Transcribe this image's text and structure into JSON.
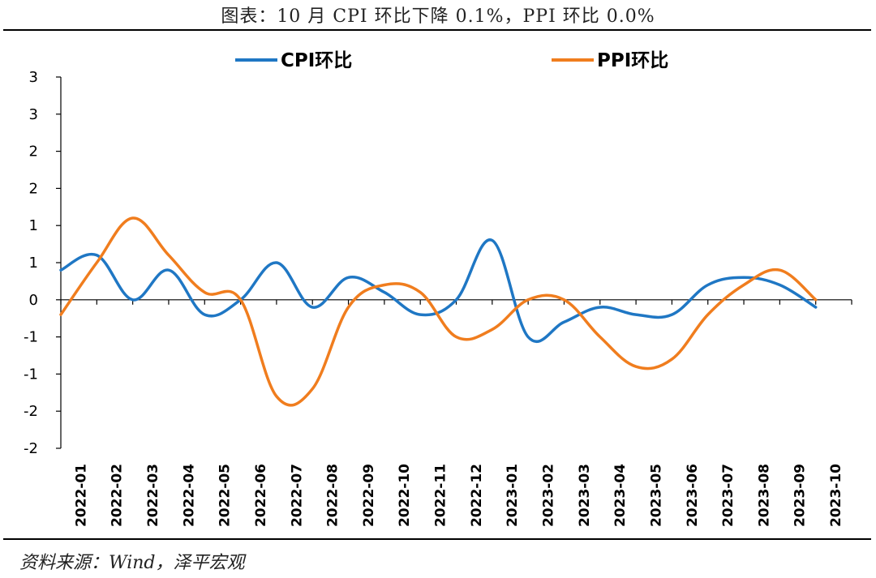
{
  "title": "图表：10 月 CPI 环比下降 0.1%，PPI 环比 0.0%",
  "source": "资料来源：Wind，泽平宏观",
  "chart_data": {
    "type": "line",
    "categories": [
      "2022-01",
      "2022-02",
      "2022-03",
      "2022-04",
      "2022-05",
      "2022-06",
      "2022-07",
      "2022-08",
      "2022-09",
      "2022-10",
      "2022-11",
      "2022-12",
      "2023-01",
      "2023-02",
      "2023-03",
      "2023-04",
      "2023-05",
      "2023-06",
      "2023-07",
      "2023-08",
      "2023-09",
      "2023-10"
    ],
    "series": [
      {
        "name": "CPI环比",
        "color": "#1f77c4",
        "values": [
          0.4,
          0.6,
          0.0,
          0.4,
          -0.2,
          0.0,
          0.5,
          -0.1,
          0.3,
          0.1,
          -0.2,
          0.0,
          0.8,
          -0.5,
          -0.3,
          -0.1,
          -0.2,
          -0.2,
          0.2,
          0.3,
          0.2,
          -0.1
        ]
      },
      {
        "name": "PPI环比",
        "color": "#f07d1e",
        "values": [
          -0.2,
          0.5,
          1.1,
          0.6,
          0.1,
          0.0,
          -1.3,
          -1.2,
          -0.1,
          0.2,
          0.1,
          -0.5,
          -0.4,
          0.0,
          0.0,
          -0.5,
          -0.9,
          -0.8,
          -0.2,
          0.2,
          0.4,
          0.0
        ]
      }
    ],
    "y_tick_labels": [
      "3",
      "3",
      "2",
      "2",
      "1",
      "1",
      "0",
      "-1",
      "-1",
      "-2",
      "-2"
    ],
    "ylim": [
      -2.0,
      3.0
    ],
    "grid": false,
    "legend_position": "top"
  }
}
